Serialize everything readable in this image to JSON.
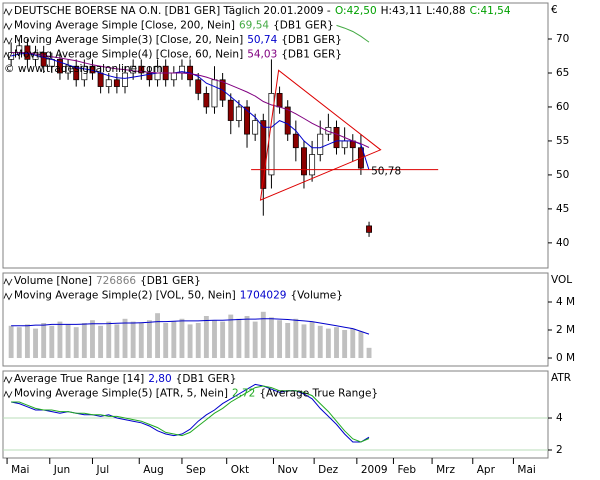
{
  "x_axis": {
    "x": [
      2,
      6,
      10,
      14,
      18,
      22,
      26,
      30,
      34,
      38,
      42,
      46,
      50,
      54,
      58,
      62,
      66,
      70,
      74,
      78,
      82,
      86,
      90,
      94,
      98,
      102,
      106,
      110,
      114,
      118,
      122,
      126,
      130,
      134,
      138,
      142,
      146,
      150,
      154,
      158,
      162,
      166,
      170,
      174,
      178
    ],
    "xlim": [
      -2,
      266
    ],
    "xticks": [
      {
        "value": 0,
        "label": "Mai"
      },
      {
        "value": 21,
        "label": "Jun"
      },
      {
        "value": 42,
        "label": "Jul"
      },
      {
        "value": 65,
        "label": "Aug"
      },
      {
        "value": 86,
        "label": "Sep"
      },
      {
        "value": 108,
        "label": "Okt"
      },
      {
        "value": 131,
        "label": "Nov"
      },
      {
        "value": 151,
        "label": "Dez"
      },
      {
        "value": 172,
        "label": "2009"
      },
      {
        "value": 190,
        "label": "Feb"
      },
      {
        "value": 209,
        "label": "Mrz"
      },
      {
        "value": 229,
        "label": "Apr"
      },
      {
        "value": 249,
        "label": "Mai"
      }
    ]
  },
  "chart_data": [
    {
      "type": "candlestick",
      "axis_label": "€",
      "source": "© www.tradesignalonline.com",
      "ylim": [
        36.3,
        75.3
      ],
      "yticks": [
        40,
        45,
        50,
        55,
        60,
        65,
        70
      ],
      "series": [
        {
          "name": "DEUTSCHE BOERSE NA O.N. [DB1 GER] Täglich 20.01.2009 -",
          "ohlc_labels": [
            "O:42,50",
            "H:43,11",
            "L:40,88",
            "C:41,54"
          ],
          "label_colors": [
            "#00a000",
            "#000000",
            "#000000",
            "#00a000"
          ],
          "up_color": "#ffffff",
          "down_color": "#8b0000",
          "open": [
            67,
            68,
            69,
            67,
            68,
            66,
            67,
            65,
            66,
            64,
            66,
            65,
            63,
            64,
            63,
            65,
            66,
            65,
            64,
            66,
            64,
            65,
            66,
            64,
            62,
            60,
            64,
            61,
            58,
            60,
            56,
            58,
            50,
            62,
            60,
            56,
            54,
            50,
            53,
            56,
            57,
            54,
            55,
            54,
            42.5
          ],
          "high": [
            69.5,
            70,
            70,
            69,
            69,
            68,
            68,
            67,
            67,
            67,
            67,
            66,
            65,
            65,
            66,
            67,
            67,
            66,
            67,
            67,
            66,
            67,
            67,
            65,
            63,
            66,
            65,
            62,
            61,
            61,
            59,
            59,
            67,
            63,
            61,
            58,
            55,
            55,
            58,
            59,
            58,
            57,
            56,
            56,
            43.11
          ],
          "low": [
            66,
            67,
            66,
            66,
            65,
            65,
            64,
            64,
            63,
            63,
            64,
            62,
            62,
            62,
            62,
            64,
            64,
            63,
            63,
            63,
            63,
            64,
            63,
            61,
            59,
            59,
            60,
            56,
            57,
            54,
            55,
            44,
            48,
            59,
            55,
            52,
            48,
            49,
            52,
            55,
            53,
            53,
            52,
            50,
            40.88
          ],
          "close": [
            68,
            69,
            67,
            68,
            66,
            67,
            65,
            66,
            64,
            66,
            65,
            63,
            64,
            63,
            65,
            66,
            65,
            64,
            66,
            64,
            65,
            66,
            64,
            62,
            60,
            64,
            61,
            58,
            60,
            56,
            58,
            48,
            62,
            60,
            56,
            54,
            50,
            53,
            56,
            57,
            54,
            55,
            54,
            51,
            41.54
          ]
        },
        {
          "type": "line",
          "name": "Moving Average Simple [Close, 200, Nein]",
          "value_label": "69,54",
          "tag": "{DB1 GER}",
          "color": "#44aa44",
          "values": [
            null,
            null,
            null,
            null,
            null,
            null,
            null,
            null,
            null,
            null,
            null,
            null,
            null,
            null,
            null,
            null,
            null,
            null,
            null,
            null,
            null,
            null,
            null,
            null,
            null,
            null,
            null,
            null,
            null,
            null,
            null,
            null,
            null,
            null,
            null,
            null,
            null,
            null,
            null,
            null,
            72.0,
            71.6,
            71.1,
            70.4,
            69.54
          ]
        },
        {
          "type": "line",
          "name": "Moving Average Simple(3) [Close, 20, Nein]",
          "value_label": "50,74",
          "tag": "{DB1 GER}",
          "color": "#0000cc",
          "values": [
            67.5,
            67.8,
            67.9,
            67.6,
            67.3,
            67,
            66.6,
            66.2,
            65.8,
            65.6,
            65.4,
            65,
            64.6,
            64.3,
            64.2,
            64.4,
            64.6,
            64.8,
            65,
            65,
            65,
            65.2,
            65,
            64.5,
            63.5,
            63,
            62.5,
            61.5,
            60.5,
            59.5,
            58.5,
            57,
            57,
            58,
            57.5,
            56.5,
            55,
            54,
            54,
            54.5,
            55,
            55,
            55,
            54.5,
            50.74
          ]
        },
        {
          "type": "line",
          "name": "Moving Average Simple(4) [Close, 60, Nein]",
          "value_label": "54,03",
          "tag": "{DB1 GER}",
          "color": "#800080",
          "values": [
            68,
            68,
            68,
            67.8,
            67.6,
            67.4,
            67.2,
            67,
            66.8,
            66.5,
            66.2,
            66,
            65.8,
            65.6,
            65.5,
            65.3,
            65.2,
            65.1,
            65,
            65,
            65,
            65,
            64.9,
            64.7,
            64.4,
            64,
            63.7,
            63.2,
            62.7,
            62.2,
            61.6,
            60.8,
            60.3,
            60,
            59.6,
            59,
            58.3,
            57.6,
            57,
            56.4,
            56,
            55.5,
            55,
            54.6,
            54.03
          ]
        }
      ],
      "annotations": [
        {
          "type": "hline",
          "value": 50.78,
          "label": "50,78",
          "x": [
            120,
            212
          ],
          "color": "#dd0000"
        },
        {
          "type": "polygon",
          "x": [
            133.5,
            124.6,
            183.7
          ],
          "y": [
            65.4,
            46.3,
            53.7
          ],
          "color": "#dd0000"
        }
      ]
    },
    {
      "type": "bar",
      "axis_label": "VOL",
      "ylim": [
        -570000,
        6070000
      ],
      "yticks": [
        {
          "value": 0,
          "label": "0 M"
        },
        {
          "value": 2000000,
          "label": "2 M"
        },
        {
          "value": 4000000,
          "label": "4 M"
        }
      ],
      "series": [
        {
          "type": "bar",
          "name": "Volume [None]",
          "value_label": "726866",
          "tag": "{DB1 GER}",
          "color": "#c0c0c0",
          "label_color": "#808080",
          "values": [
            2300000,
            2200000,
            2400000,
            2100000,
            2500000,
            2300000,
            2600000,
            2400000,
            2200000,
            2500000,
            2700000,
            2300000,
            2600000,
            2400000,
            2800000,
            2600000,
            2500000,
            2700000,
            3200000,
            2500000,
            2600000,
            2800000,
            2400000,
            2500000,
            3000000,
            2700000,
            2600000,
            3100000,
            2800000,
            3000000,
            2600000,
            3300000,
            2900000,
            2700000,
            2500000,
            2800000,
            2400000,
            2600000,
            2300000,
            2100000,
            2200000,
            2000000,
            2100000,
            1900000,
            726866
          ]
        },
        {
          "type": "line",
          "name": "Moving Average Simple(2) [VOL, 50, Nein]",
          "value_label": "1704029",
          "tag": "{Volume}",
          "color": "#0000cc",
          "values": [
            2300000,
            2300000,
            2300000,
            2350000,
            2350000,
            2400000,
            2400000,
            2400000,
            2400000,
            2420000,
            2450000,
            2450000,
            2460000,
            2480000,
            2500000,
            2500000,
            2520000,
            2550000,
            2600000,
            2600000,
            2620000,
            2650000,
            2650000,
            2650000,
            2680000,
            2700000,
            2700000,
            2720000,
            2750000,
            2780000,
            2780000,
            2800000,
            2800000,
            2780000,
            2750000,
            2700000,
            2650000,
            2600000,
            2500000,
            2400000,
            2300000,
            2200000,
            2100000,
            1900000,
            1704029
          ]
        }
      ]
    },
    {
      "type": "line",
      "axis_label": "ATR",
      "ylim": [
        1.5,
        6.94
      ],
      "yticks": [
        2,
        4
      ],
      "grid": true,
      "grid_color": "#b8dcb8",
      "series": [
        {
          "type": "line",
          "name": "Average True Range [14]",
          "value_label": "2,80",
          "tag": "{DB1 GER}",
          "color": "#0000cc",
          "values": [
            5.0,
            4.9,
            4.7,
            4.5,
            4.5,
            4.4,
            4.3,
            4.4,
            4.3,
            4.2,
            4.2,
            4.1,
            4.2,
            4.0,
            3.9,
            3.8,
            3.7,
            3.5,
            3.2,
            3.0,
            2.9,
            3.0,
            3.3,
            3.8,
            4.2,
            4.5,
            4.9,
            5.2,
            5.5,
            5.8,
            6.1,
            6.0,
            5.8,
            5.6,
            5.7,
            5.7,
            5.5,
            5.2,
            4.6,
            4.1,
            3.6,
            3.0,
            2.5,
            2.5,
            2.8
          ]
        },
        {
          "type": "line",
          "name": "Moving Average Simple(5) [ATR, 5, Nein]",
          "value_label": "2,72",
          "tag": "{Average True Range}",
          "color": "#22aa22",
          "values": [
            5.0,
            5.0,
            4.8,
            4.6,
            4.5,
            4.5,
            4.4,
            4.4,
            4.3,
            4.3,
            4.2,
            4.2,
            4.1,
            4.1,
            4.0,
            3.9,
            3.8,
            3.6,
            3.4,
            3.1,
            3.0,
            2.9,
            3.1,
            3.5,
            3.9,
            4.3,
            4.6,
            5.0,
            5.3,
            5.6,
            5.9,
            6.0,
            5.9,
            5.7,
            5.7,
            5.7,
            5.6,
            5.4,
            4.9,
            4.4,
            3.8,
            3.2,
            2.7,
            2.5,
            2.72
          ]
        }
      ]
    }
  ]
}
